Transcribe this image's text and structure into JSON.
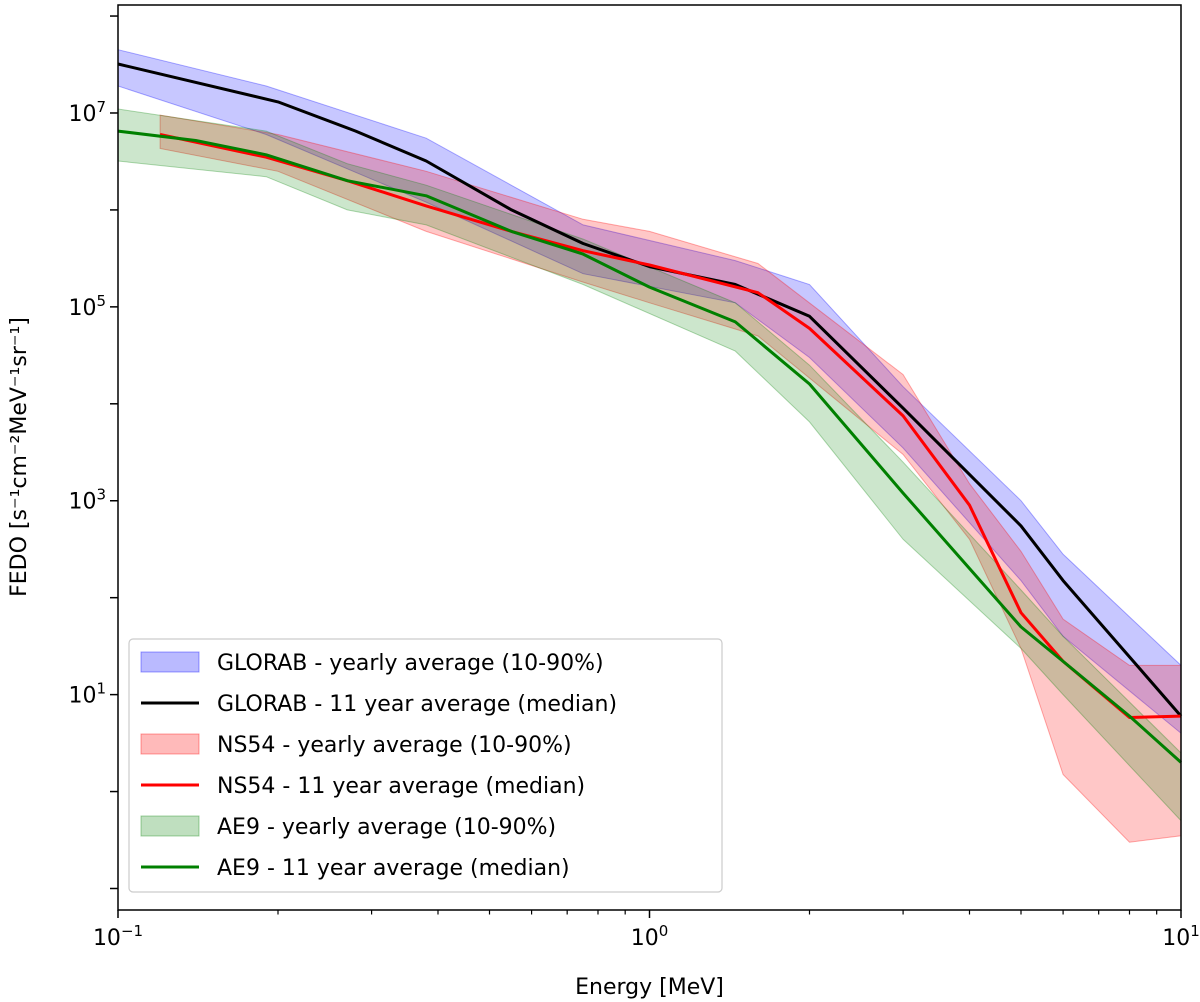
{
  "chart_data": {
    "type": "line",
    "title": "",
    "xlabel": "Energy [MeV]",
    "ylabel": "FEDO [s⁻¹cm⁻²MeV⁻¹sr⁻¹]",
    "xscale": "log",
    "yscale": "log",
    "xlim": [
      0.1,
      10
    ],
    "ylim": [
      0.06,
      130000000
    ],
    "x_ticks": [
      {
        "value": 0.1,
        "base": "10",
        "exp": "−1"
      },
      {
        "value": 1,
        "base": "10",
        "exp": "0"
      },
      {
        "value": 10,
        "base": "10",
        "exp": "1"
      }
    ],
    "y_ticks": [
      {
        "value": 10,
        "base": "10",
        "exp": "1"
      },
      {
        "value": 1000,
        "base": "10",
        "exp": "3"
      },
      {
        "value": 100000,
        "base": "10",
        "exp": "5"
      },
      {
        "value": 10000000,
        "base": "10",
        "exp": "7"
      }
    ],
    "grid": false,
    "legend_position": "lower-left",
    "series": [
      {
        "name": "GLORAB - yearly average (10-90%)",
        "kind": "band",
        "color": "#0000ff",
        "opacity": 0.22,
        "x": [
          0.1,
          0.19,
          0.38,
          0.75,
          1.45,
          2.0,
          3.0,
          5.0,
          6.0,
          10.0
        ],
        "lower": [
          19000000,
          6000000,
          1200000,
          220000,
          110000,
          30000,
          3500,
          150,
          40,
          4
        ],
        "upper": [
          45000000,
          19000000,
          5500000,
          700000,
          300000,
          170000,
          15000,
          1000,
          280,
          20
        ]
      },
      {
        "name": "GLORAB - 11 year average (median)",
        "kind": "line",
        "color": "#000000",
        "x": [
          0.1,
          0.2,
          0.28,
          0.38,
          0.55,
          0.75,
          1.0,
          1.45,
          2.0,
          3.0,
          5.0,
          6.0,
          10.0
        ],
        "y": [
          32000000,
          13000000,
          6500000,
          3200000,
          1000000,
          450000,
          260000,
          170000,
          80000,
          9000,
          550,
          150,
          6
        ]
      },
      {
        "name": "NS54 - yearly average (10-90%)",
        "kind": "band",
        "color": "#ff0000",
        "opacity": 0.22,
        "x": [
          0.12,
          0.2,
          0.38,
          0.75,
          1.0,
          1.6,
          3.0,
          4.0,
          5.0,
          6.0,
          8.0,
          10.0
        ],
        "lower": [
          4300000,
          2500000,
          600000,
          180000,
          110000,
          50000,
          3000,
          400,
          30,
          1.5,
          0.3,
          0.35
        ],
        "upper": [
          9500000,
          6000000,
          2500000,
          800000,
          600000,
          280000,
          20000,
          1500,
          300,
          60,
          20,
          20
        ]
      },
      {
        "name": "NS54 - 11 year average (median)",
        "kind": "line",
        "color": "#ff0000",
        "x": [
          0.12,
          0.19,
          0.27,
          0.38,
          0.55,
          0.75,
          1.0,
          1.6,
          2.0,
          3.0,
          4.0,
          5.0,
          6.0,
          8.0,
          10.0
        ],
        "y": [
          6000000,
          3500000,
          2000000,
          1100000,
          600000,
          380000,
          270000,
          140000,
          60000,
          7500,
          900,
          70,
          22,
          5.8,
          6
        ]
      },
      {
        "name": "AE9 - yearly average (10-90%)",
        "kind": "band",
        "color": "#008000",
        "opacity": 0.2,
        "x": [
          0.1,
          0.19,
          0.27,
          0.38,
          0.75,
          1.45,
          2.0,
          3.0,
          5.0,
          6.0,
          10.0
        ],
        "lower": [
          3200000,
          2200000,
          1000000,
          700000,
          170000,
          35000,
          6500,
          400,
          30,
          10,
          0.5
        ],
        "upper": [
          11000000,
          6500000,
          3000000,
          1800000,
          500000,
          110000,
          25000,
          2500,
          120,
          40,
          2.5
        ]
      },
      {
        "name": "AE9 - 11 year average (median)",
        "kind": "line",
        "color": "#008000",
        "x": [
          0.1,
          0.14,
          0.19,
          0.27,
          0.38,
          0.55,
          0.75,
          1.0,
          1.45,
          2.0,
          3.0,
          4.0,
          5.0,
          6.0,
          8.0,
          10.0
        ],
        "y": [
          6500000,
          5200000,
          3700000,
          2000000,
          1400000,
          600000,
          350000,
          160000,
          70000,
          16000,
          1200,
          200,
          50,
          22,
          6,
          2
        ]
      }
    ]
  }
}
